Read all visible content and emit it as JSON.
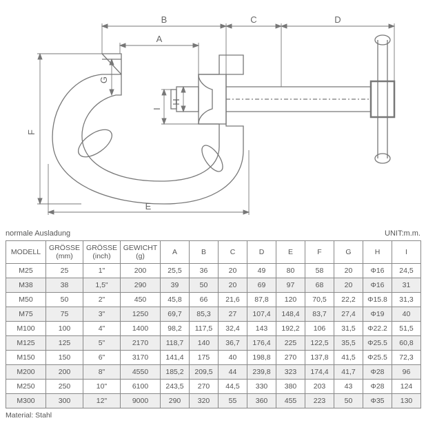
{
  "diagram": {
    "type": "technical-drawing",
    "description": "C-clamp / G-clamp",
    "stroke_color": "#777777",
    "stroke_width": 1.3,
    "background": "#ffffff",
    "dim_labels": {
      "A": "A",
      "B": "B",
      "C": "C",
      "D": "D",
      "E": "E",
      "F": "F",
      "G": "G",
      "H": "H",
      "I": "I"
    }
  },
  "table_meta": {
    "left_caption": "normale Ausladung",
    "right_caption": "UNIT:m.m.",
    "material_label": "Material: Stahl"
  },
  "columns": [
    {
      "key": "model",
      "label": "MODELL",
      "class": "col-model"
    },
    {
      "key": "size_mm",
      "label": "GRÖSSE\n(mm)",
      "class": "col-mm"
    },
    {
      "key": "size_in",
      "label": "GRÖSSE\n(inch)",
      "class": "col-inch"
    },
    {
      "key": "weight",
      "label": "GEWICHT\n(g)",
      "class": "col-wt"
    },
    {
      "key": "A",
      "label": "A",
      "class": "col-dim"
    },
    {
      "key": "B",
      "label": "B",
      "class": "col-dim"
    },
    {
      "key": "C",
      "label": "C",
      "class": "col-dim"
    },
    {
      "key": "D",
      "label": "D",
      "class": "col-dim"
    },
    {
      "key": "E",
      "label": "E",
      "class": "col-dim"
    },
    {
      "key": "F",
      "label": "F",
      "class": "col-dim"
    },
    {
      "key": "G",
      "label": "G",
      "class": "col-dim"
    },
    {
      "key": "H",
      "label": "H",
      "class": "col-dim"
    },
    {
      "key": "I",
      "label": "I",
      "class": "col-dim"
    }
  ],
  "rows": [
    {
      "shaded": false,
      "cells": [
        "M25",
        "25",
        "1\"",
        "200",
        "25,5",
        "36",
        "20",
        "49",
        "80",
        "58",
        "20",
        "Φ16",
        "24,5"
      ]
    },
    {
      "shaded": true,
      "cells": [
        "M38",
        "38",
        "1,5\"",
        "290",
        "39",
        "50",
        "20",
        "69",
        "97",
        "68",
        "20",
        "Φ16",
        "31"
      ]
    },
    {
      "shaded": false,
      "cells": [
        "M50",
        "50",
        "2\"",
        "450",
        "45,8",
        "66",
        "21,6",
        "87,8",
        "120",
        "70,5",
        "22,2",
        "Φ15.8",
        "31,3"
      ]
    },
    {
      "shaded": true,
      "cells": [
        "M75",
        "75",
        "3\"",
        "1250",
        "69,7",
        "85,3",
        "27",
        "107,4",
        "148,4",
        "83,7",
        "27,4",
        "Φ19",
        "40"
      ]
    },
    {
      "shaded": false,
      "cells": [
        "M100",
        "100",
        "4\"",
        "1400",
        "98,2",
        "117,5",
        "32,4",
        "143",
        "192,2",
        "106",
        "31,5",
        "Φ22.2",
        "51,5"
      ]
    },
    {
      "shaded": true,
      "cells": [
        "M125",
        "125",
        "5\"",
        "2170",
        "118,7",
        "140",
        "36,7",
        "176,4",
        "225",
        "122,5",
        "35,5",
        "Φ25.5",
        "60,8"
      ]
    },
    {
      "shaded": false,
      "cells": [
        "M150",
        "150",
        "6\"",
        "3170",
        "141,4",
        "175",
        "40",
        "198,8",
        "270",
        "137,8",
        "41,5",
        "Φ25.5",
        "72,3"
      ]
    },
    {
      "shaded": true,
      "cells": [
        "M200",
        "200",
        "8\"",
        "4550",
        "185,2",
        "209,5",
        "44",
        "239,8",
        "323",
        "174,4",
        "41,7",
        "Φ28",
        "96"
      ]
    },
    {
      "shaded": false,
      "cells": [
        "M250",
        "250",
        "10\"",
        "6100",
        "243,5",
        "270",
        "44,5",
        "330",
        "380",
        "203",
        "43",
        "Φ28",
        "124"
      ]
    },
    {
      "shaded": true,
      "cells": [
        "M300",
        "300",
        "12\"",
        "9000",
        "290",
        "320",
        "55",
        "360",
        "455",
        "223",
        "50",
        "Φ35",
        "130"
      ]
    }
  ]
}
